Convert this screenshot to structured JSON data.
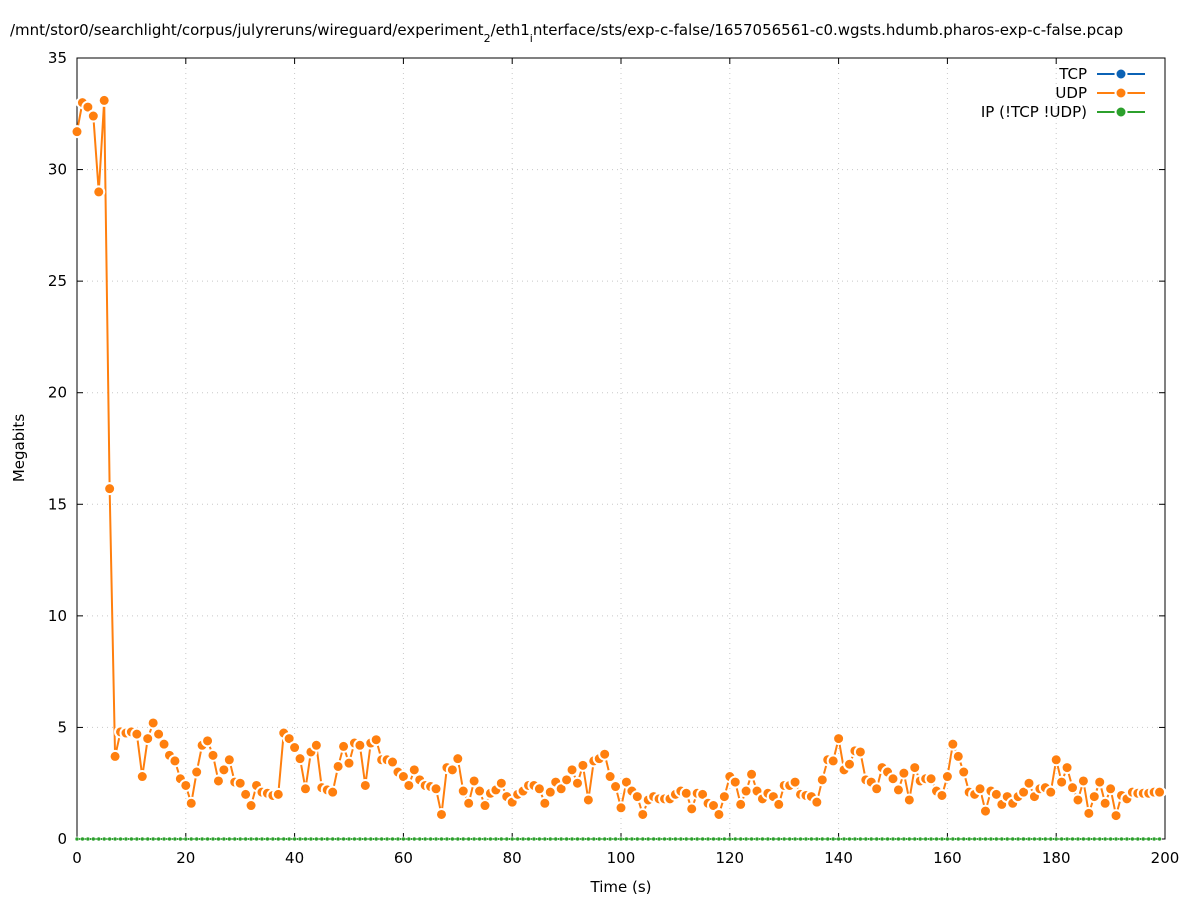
{
  "chart_data": {
    "type": "line",
    "title": [
      {
        "text": "/mnt/stor0/searchlight/corpus/julyreruns/wireguard/experiment"
      },
      {
        "text": "2",
        "sub": true
      },
      {
        "text": "/eth1"
      },
      {
        "text": "i",
        "sub": true
      },
      {
        "text": "nterface/sts/exp-c-false/1657056561-c0.wgsts.hdumb.pharos-exp-c-false.pcap"
      }
    ],
    "x_label": "Time (s)",
    "y_label": "Megabits",
    "xlim": [
      0,
      200
    ],
    "xticks": [
      0,
      20,
      40,
      60,
      80,
      100,
      120,
      140,
      160,
      180,
      200
    ],
    "ylim": [
      0,
      35
    ],
    "yticks": [
      0,
      5,
      10,
      15,
      20,
      25,
      30,
      35
    ],
    "grid": true,
    "legend": "top-right",
    "x": [
      0,
      1,
      2,
      3,
      4,
      5,
      6,
      7,
      8,
      9,
      10,
      11,
      12,
      13,
      14,
      15,
      16,
      17,
      18,
      19,
      20,
      21,
      22,
      23,
      24,
      25,
      26,
      27,
      28,
      29,
      30,
      31,
      32,
      33,
      34,
      35,
      36,
      37,
      38,
      39,
      40,
      41,
      42,
      43,
      44,
      45,
      46,
      47,
      48,
      49,
      50,
      51,
      52,
      53,
      54,
      55,
      56,
      57,
      58,
      59,
      60,
      61,
      62,
      63,
      64,
      65,
      66,
      67,
      68,
      69,
      70,
      71,
      72,
      73,
      74,
      75,
      76,
      77,
      78,
      79,
      80,
      81,
      82,
      83,
      84,
      85,
      86,
      87,
      88,
      89,
      90,
      91,
      92,
      93,
      94,
      95,
      96,
      97,
      98,
      99,
      100,
      101,
      102,
      103,
      104,
      105,
      106,
      107,
      108,
      109,
      110,
      111,
      112,
      113,
      114,
      115,
      116,
      117,
      118,
      119,
      120,
      121,
      122,
      123,
      124,
      125,
      126,
      127,
      128,
      129,
      130,
      131,
      132,
      133,
      134,
      135,
      136,
      137,
      138,
      139,
      140,
      141,
      142,
      143,
      144,
      145,
      146,
      147,
      148,
      149,
      150,
      151,
      152,
      153,
      154,
      155,
      156,
      157,
      158,
      159,
      160,
      161,
      162,
      163,
      164,
      165,
      166,
      167,
      168,
      169,
      170,
      171,
      172,
      173,
      174,
      175,
      176,
      177,
      178,
      179,
      180,
      181,
      182,
      183,
      184,
      185,
      186,
      187,
      188,
      189,
      190,
      191,
      192,
      193,
      194,
      195,
      196,
      197,
      198,
      199
    ],
    "series": [
      {
        "name": "TCP",
        "color": "#0b62b5",
        "values": [
          0,
          0,
          0,
          0,
          0,
          0,
          0,
          0,
          0,
          0,
          0,
          0,
          0,
          0,
          0,
          0,
          0,
          0,
          0,
          0,
          0,
          0,
          0,
          0,
          0,
          0,
          0,
          0,
          0,
          0,
          0,
          0,
          0,
          0,
          0,
          0,
          0,
          0,
          0,
          0,
          0,
          0,
          0,
          0,
          0,
          0,
          0,
          0,
          0,
          0,
          0,
          0,
          0,
          0,
          0,
          0,
          0,
          0,
          0,
          0,
          0,
          0,
          0,
          0,
          0,
          0,
          0,
          0,
          0,
          0,
          0,
          0,
          0,
          0,
          0,
          0,
          0,
          0,
          0,
          0,
          0,
          0,
          0,
          0,
          0,
          0,
          0,
          0,
          0,
          0,
          0,
          0,
          0,
          0,
          0,
          0,
          0,
          0,
          0,
          0,
          0,
          0,
          0,
          0,
          0,
          0,
          0,
          0,
          0,
          0,
          0,
          0,
          0,
          0,
          0,
          0,
          0,
          0,
          0,
          0,
          0,
          0,
          0,
          0,
          0,
          0,
          0,
          0,
          0,
          0,
          0,
          0,
          0,
          0,
          0,
          0,
          0,
          0,
          0,
          0,
          0,
          0,
          0,
          0,
          0,
          0,
          0,
          0,
          0,
          0,
          0,
          0,
          0,
          0,
          0,
          0,
          0,
          0,
          0,
          0,
          0,
          0,
          0,
          0,
          0,
          0,
          0,
          0,
          0,
          0,
          0,
          0,
          0,
          0,
          0,
          0,
          0,
          0,
          0,
          0,
          0,
          0,
          0,
          0,
          0,
          0,
          0,
          0,
          0,
          0,
          0,
          0,
          0,
          0,
          0,
          0,
          0,
          0,
          0,
          0
        ]
      },
      {
        "name": "UDP",
        "color": "#ff7f0e",
        "values": [
          31.7,
          33.0,
          32.8,
          32.4,
          29.0,
          33.1,
          15.7,
          3.7,
          4.8,
          4.75,
          4.8,
          4.7,
          2.8,
          4.5,
          5.2,
          4.7,
          4.25,
          3.75,
          3.5,
          2.7,
          2.4,
          1.6,
          3.0,
          4.2,
          4.4,
          3.75,
          2.6,
          3.1,
          3.55,
          2.55,
          2.5,
          2.0,
          1.5,
          2.4,
          2.1,
          2.05,
          1.95,
          2.0,
          4.75,
          4.5,
          4.1,
          3.6,
          2.25,
          3.9,
          4.2,
          2.3,
          2.2,
          2.1,
          3.25,
          4.15,
          3.4,
          4.3,
          4.2,
          2.4,
          4.3,
          4.45,
          3.55,
          3.55,
          3.45,
          3.0,
          2.8,
          2.4,
          3.1,
          2.65,
          2.4,
          2.35,
          2.25,
          1.1,
          3.2,
          3.1,
          3.6,
          2.15,
          1.6,
          2.6,
          2.15,
          1.5,
          2.05,
          2.2,
          2.5,
          1.9,
          1.65,
          2.0,
          2.15,
          2.4,
          2.4,
          2.25,
          1.6,
          2.1,
          2.55,
          2.25,
          2.65,
          3.1,
          2.5,
          3.3,
          1.75,
          3.5,
          3.6,
          3.8,
          2.8,
          2.35,
          1.4,
          2.55,
          2.15,
          1.9,
          1.1,
          1.75,
          1.9,
          1.8,
          1.8,
          1.8,
          2.0,
          2.15,
          2.05,
          1.35,
          2.05,
          2.0,
          1.6,
          1.5,
          1.1,
          1.9,
          2.8,
          2.55,
          1.55,
          2.15,
          2.9,
          2.15,
          1.8,
          2.05,
          1.9,
          1.55,
          2.4,
          2.4,
          2.55,
          2.0,
          1.95,
          1.9,
          1.65,
          2.65,
          3.55,
          3.5,
          4.5,
          3.1,
          3.35,
          3.95,
          3.9,
          2.65,
          2.55,
          2.25,
          3.2,
          3.0,
          2.7,
          2.2,
          2.95,
          1.75,
          3.2,
          2.6,
          2.7,
          2.7,
          2.15,
          1.95,
          2.8,
          4.25,
          3.7,
          3.0,
          2.1,
          2.0,
          2.25,
          1.25,
          2.15,
          2.0,
          1.55,
          1.9,
          1.6,
          1.9,
          2.1,
          2.5,
          1.9,
          2.25,
          2.3,
          2.1,
          3.55,
          2.55,
          3.2,
          2.3,
          1.75,
          2.6,
          1.15,
          1.9,
          2.55,
          1.6,
          2.25,
          1.05,
          1.95,
          1.8,
          2.1,
          2.05,
          2.05,
          2.05,
          2.1,
          2.1
        ]
      },
      {
        "name": "IP (!TCP  !UDP)",
        "color": "#2ca02c",
        "values": [
          0,
          0,
          0,
          0,
          0,
          0,
          0,
          0,
          0,
          0,
          0,
          0,
          0,
          0,
          0,
          0,
          0,
          0,
          0,
          0,
          0,
          0,
          0,
          0,
          0,
          0,
          0,
          0,
          0,
          0,
          0,
          0,
          0,
          0,
          0,
          0,
          0,
          0,
          0,
          0,
          0,
          0,
          0,
          0,
          0,
          0,
          0,
          0,
          0,
          0,
          0,
          0,
          0,
          0,
          0,
          0,
          0,
          0,
          0,
          0,
          0,
          0,
          0,
          0,
          0,
          0,
          0,
          0,
          0,
          0,
          0,
          0,
          0,
          0,
          0,
          0,
          0,
          0,
          0,
          0,
          0,
          0,
          0,
          0,
          0,
          0,
          0,
          0,
          0,
          0,
          0,
          0,
          0,
          0,
          0,
          0,
          0,
          0,
          0,
          0,
          0,
          0,
          0,
          0,
          0,
          0,
          0,
          0,
          0,
          0,
          0,
          0,
          0,
          0,
          0,
          0,
          0,
          0,
          0,
          0,
          0,
          0,
          0,
          0,
          0,
          0,
          0,
          0,
          0,
          0,
          0,
          0,
          0,
          0,
          0,
          0,
          0,
          0,
          0,
          0,
          0,
          0,
          0,
          0,
          0,
          0,
          0,
          0,
          0,
          0,
          0,
          0,
          0,
          0,
          0,
          0,
          0,
          0,
          0,
          0,
          0,
          0,
          0,
          0,
          0,
          0,
          0,
          0,
          0,
          0,
          0,
          0,
          0,
          0,
          0,
          0,
          0,
          0,
          0,
          0,
          0,
          0,
          0,
          0,
          0,
          0,
          0,
          0,
          0,
          0,
          0,
          0,
          0,
          0,
          0,
          0,
          0,
          0,
          0,
          0
        ]
      }
    ]
  }
}
